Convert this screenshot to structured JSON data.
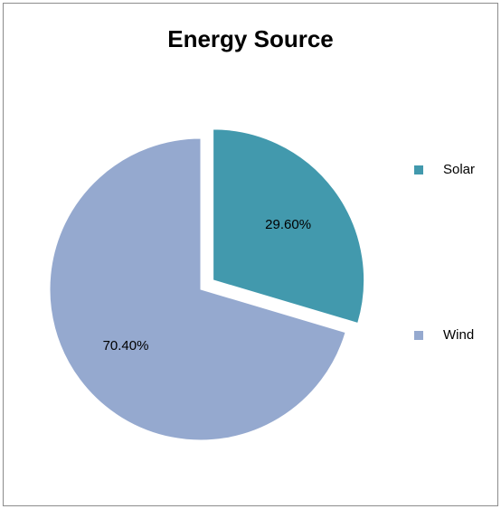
{
  "chart_data": {
    "type": "pie",
    "title": "Energy Source",
    "series": [
      {
        "name": "",
        "categories": [
          "Solar",
          "Wind"
        ],
        "values": [
          29.6,
          70.4
        ],
        "labels": [
          "29.60%",
          "70.40%"
        ],
        "colors": [
          "#4299AD",
          "#95A9CF"
        ]
      }
    ],
    "exploded_slice": "Solar",
    "start_angle_deg": 0,
    "direction": "clockwise",
    "legend_position": "right"
  }
}
